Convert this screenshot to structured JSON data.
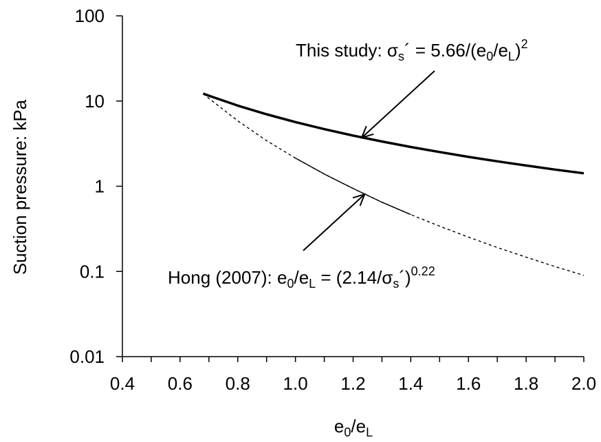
{
  "chart_data": {
    "type": "line",
    "title": "",
    "xlabel": {
      "base": "e",
      "sub1": "0",
      "mid": "/e",
      "sub2": "L"
    },
    "ylabel": "Suction pressure: kPa",
    "xlim": [
      0.4,
      2.0
    ],
    "ylim": [
      0.01,
      100
    ],
    "yscale": "log",
    "xticks": [
      "0.4",
      "0.6",
      "0.8",
      "1.0",
      "1.2",
      "1.4",
      "1.6",
      "1.8",
      "2.0"
    ],
    "yticks": [
      "0.01",
      "0.1",
      "1",
      "10",
      "100"
    ],
    "grid": false,
    "legend": "none",
    "series": [
      {
        "key": "this_study",
        "x": [
          0.68,
          0.7,
          0.8,
          0.9,
          1.0,
          1.1,
          1.2,
          1.3,
          1.4,
          1.5,
          1.6,
          1.7,
          1.8,
          1.9,
          2.0
        ],
        "y": [
          12.24,
          11.55,
          8.84,
          6.99,
          5.66,
          4.68,
          3.93,
          3.35,
          2.89,
          2.52,
          2.21,
          1.96,
          1.75,
          1.57,
          1.42
        ],
        "style": "solid-thick",
        "color": "#000000"
      },
      {
        "key": "hong_2007",
        "x": [
          0.68,
          0.7,
          0.8,
          0.9,
          1.0,
          1.1,
          1.2,
          1.3,
          1.4,
          1.5,
          1.6,
          1.7,
          1.8,
          1.9,
          2.0
        ],
        "y": [
          12.12,
          10.75,
          5.86,
          3.43,
          2.14,
          1.39,
          0.94,
          0.65,
          0.465,
          0.34,
          0.253,
          0.191,
          0.147,
          0.114,
          0.09
        ],
        "style": "dashed-thin",
        "solid_range": [
          1.0,
          1.4
        ],
        "color": "#000000"
      }
    ],
    "annotations": [
      {
        "key": "this_study_label",
        "prefix": "This study: σ",
        "sub_s": "s",
        "eq": "´  = 5.66/(e",
        "sub0": "0",
        "mid": "/e",
        "subL": "L",
        "close": ")",
        "sup": "2",
        "arrow_target": {
          "x": 1.23,
          "y": 4.0
        }
      },
      {
        "key": "hong_label",
        "prefix": "Hong (2007): e",
        "sub0": "0",
        "mid": "/e",
        "subL": "L",
        "eq": " = (2.14/σ",
        "sub_s": "s",
        "close": "´)",
        "sup": "0.22",
        "arrow_target": {
          "x": 1.24,
          "y": 0.9
        }
      }
    ]
  }
}
